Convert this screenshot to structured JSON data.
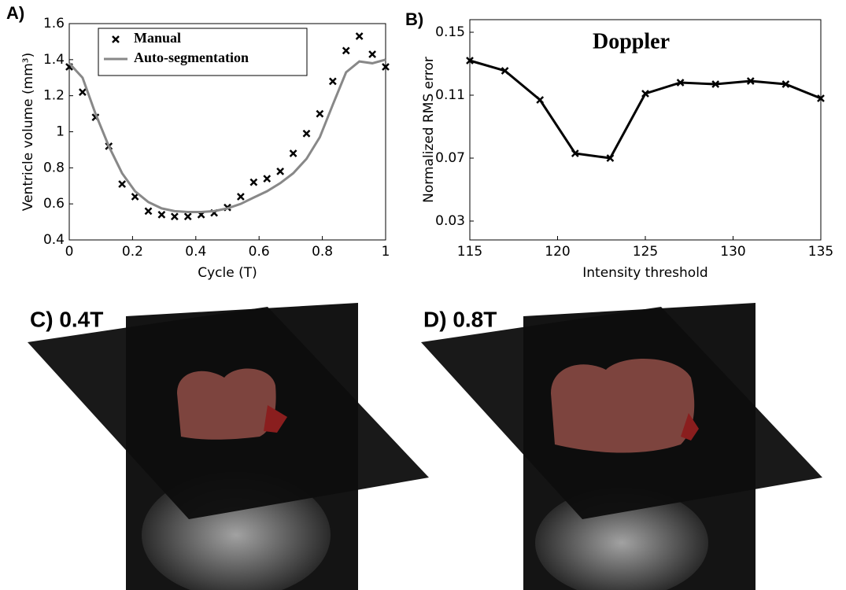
{
  "chart_data": [
    {
      "type": "line",
      "panel_label": "A)",
      "xlabel": "Cycle (T)",
      "ylabel": "Ventricle  volume (mm³)",
      "x": [
        0,
        0.042,
        0.083,
        0.125,
        0.167,
        0.208,
        0.25,
        0.292,
        0.333,
        0.375,
        0.417,
        0.458,
        0.5,
        0.542,
        0.583,
        0.625,
        0.667,
        0.708,
        0.75,
        0.792,
        0.833,
        0.875,
        0.917,
        0.958,
        1.0
      ],
      "series": [
        {
          "name": "Manual",
          "color": "#000000",
          "marker": "x",
          "line": false,
          "values": [
            1.36,
            1.22,
            1.08,
            0.92,
            0.71,
            0.64,
            0.56,
            0.54,
            0.53,
            0.53,
            0.54,
            0.55,
            0.58,
            0.64,
            0.72,
            0.74,
            0.78,
            0.88,
            0.99,
            1.1,
            1.28,
            1.45,
            1.53,
            1.43,
            1.36
          ]
        },
        {
          "name": "Auto-segmentation",
          "color": "#888888",
          "marker": "none",
          "line": true,
          "values": [
            1.38,
            1.3,
            1.1,
            0.92,
            0.77,
            0.67,
            0.61,
            0.575,
            0.56,
            0.555,
            0.555,
            0.56,
            0.575,
            0.6,
            0.635,
            0.67,
            0.715,
            0.77,
            0.85,
            0.97,
            1.15,
            1.33,
            1.39,
            1.38,
            1.4
          ]
        }
      ],
      "xlim": [
        0,
        1
      ],
      "xticks": [
        0,
        0.2,
        0.4,
        0.6,
        0.8,
        1
      ],
      "ylim": [
        0.4,
        1.6
      ],
      "yticks": [
        0.4,
        0.6,
        0.8,
        1,
        1.2,
        1.4,
        1.6
      ],
      "legend": "upper-left"
    },
    {
      "type": "line",
      "panel_label": "B)",
      "title": "Doppler",
      "xlabel": "Intensity threshold",
      "ylabel": "Normalized RMS error",
      "x": [
        115,
        117,
        119,
        121,
        123,
        125,
        127,
        129,
        131,
        133,
        135
      ],
      "series": [
        {
          "color": "#000000",
          "marker": "x",
          "line": true,
          "values": [
            0.132,
            0.1255,
            0.107,
            0.073,
            0.07,
            0.111,
            0.118,
            0.117,
            0.119,
            0.117,
            0.108
          ]
        }
      ],
      "xlim": [
        115,
        135
      ],
      "xticks": [
        115,
        120,
        125,
        130,
        135
      ],
      "ylim": [
        0.018,
        0.158
      ],
      "yticks": [
        0.03,
        0.07,
        0.11,
        0.15
      ]
    }
  ],
  "images": [
    {
      "label": "C) 0.4T"
    },
    {
      "label": "D) 0.8T"
    }
  ]
}
